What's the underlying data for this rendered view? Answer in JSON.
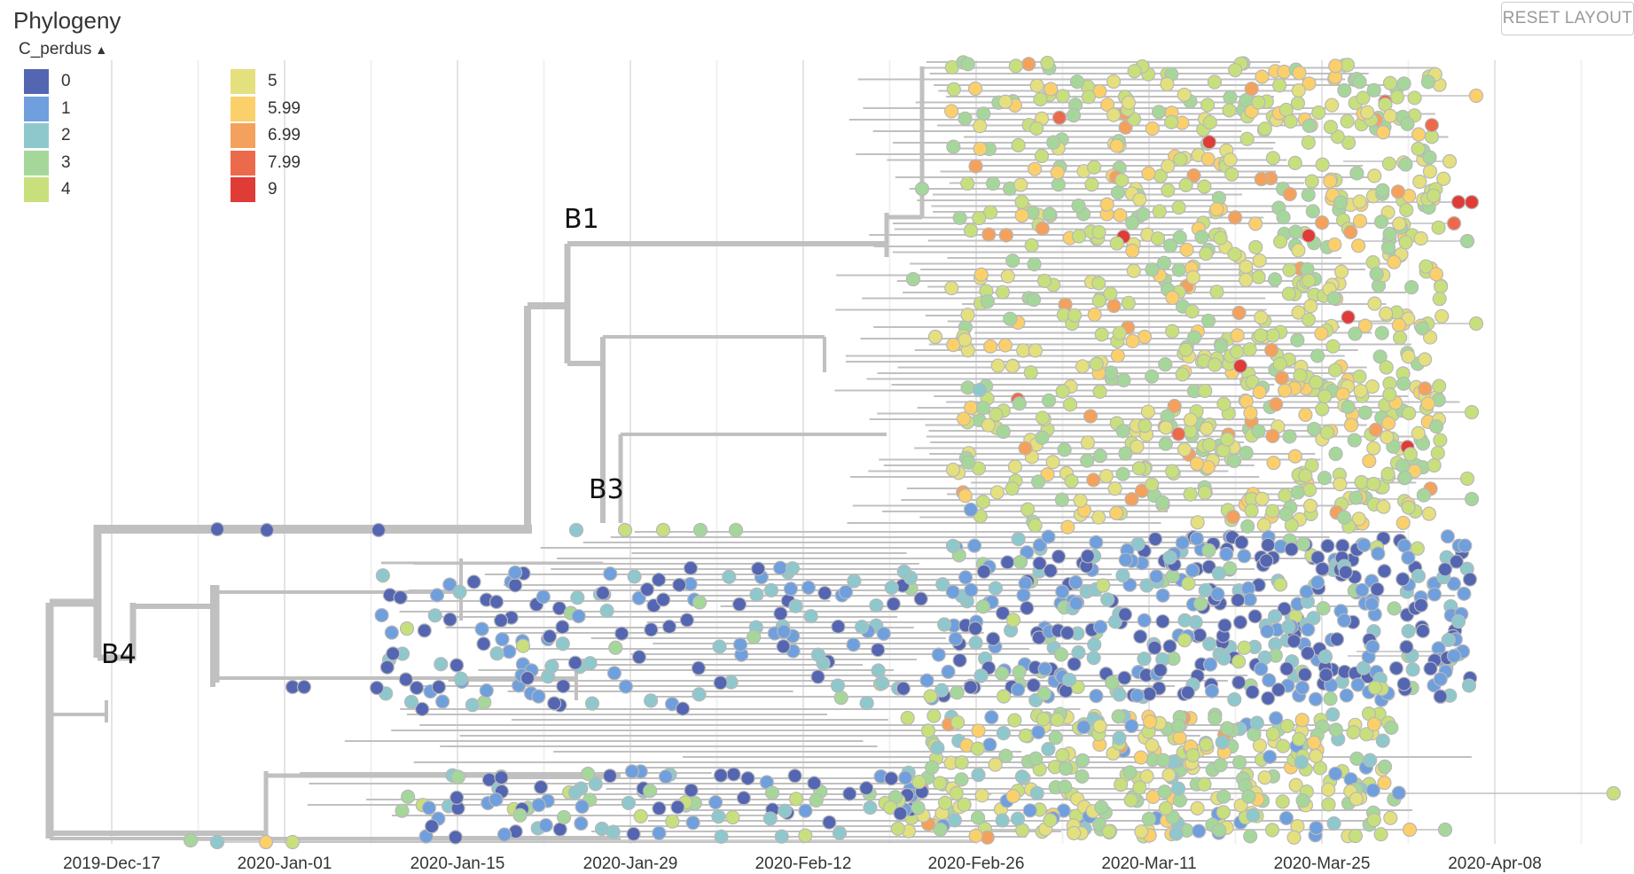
{
  "panel": {
    "title": "Phylogeny",
    "reset_label": "RESET LAYOUT"
  },
  "legend": {
    "title": "C_perdus",
    "toggle_icon": "chevron-up-icon",
    "items": [
      {
        "label": "0",
        "color": "#5465b2"
      },
      {
        "label": "1",
        "color": "#6f9fdd"
      },
      {
        "label": "2",
        "color": "#8ec8cc"
      },
      {
        "label": "3",
        "color": "#a6d79a"
      },
      {
        "label": "4",
        "color": "#c8e07c"
      },
      {
        "label": "5",
        "color": "#e4e07e"
      },
      {
        "label": "5.99",
        "color": "#fbd06b"
      },
      {
        "label": "6.99",
        "color": "#f3a15c"
      },
      {
        "label": "7.99",
        "color": "#ec6a4c"
      },
      {
        "label": "9",
        "color": "#df3b37"
      }
    ]
  },
  "axis": {
    "ticks": [
      "2019-Dec-17",
      "2020-Jan-01",
      "2020-Jan-15",
      "2020-Jan-29",
      "2020-Feb-12",
      "2020-Feb-26",
      "2020-Mar-11",
      "2020-Mar-25",
      "2020-Apr-08"
    ]
  },
  "clades": [
    "B1",
    "B3",
    "B4"
  ],
  "colors": {
    "branch": "#c0c0c0",
    "grid": "#e4e4e4"
  }
}
